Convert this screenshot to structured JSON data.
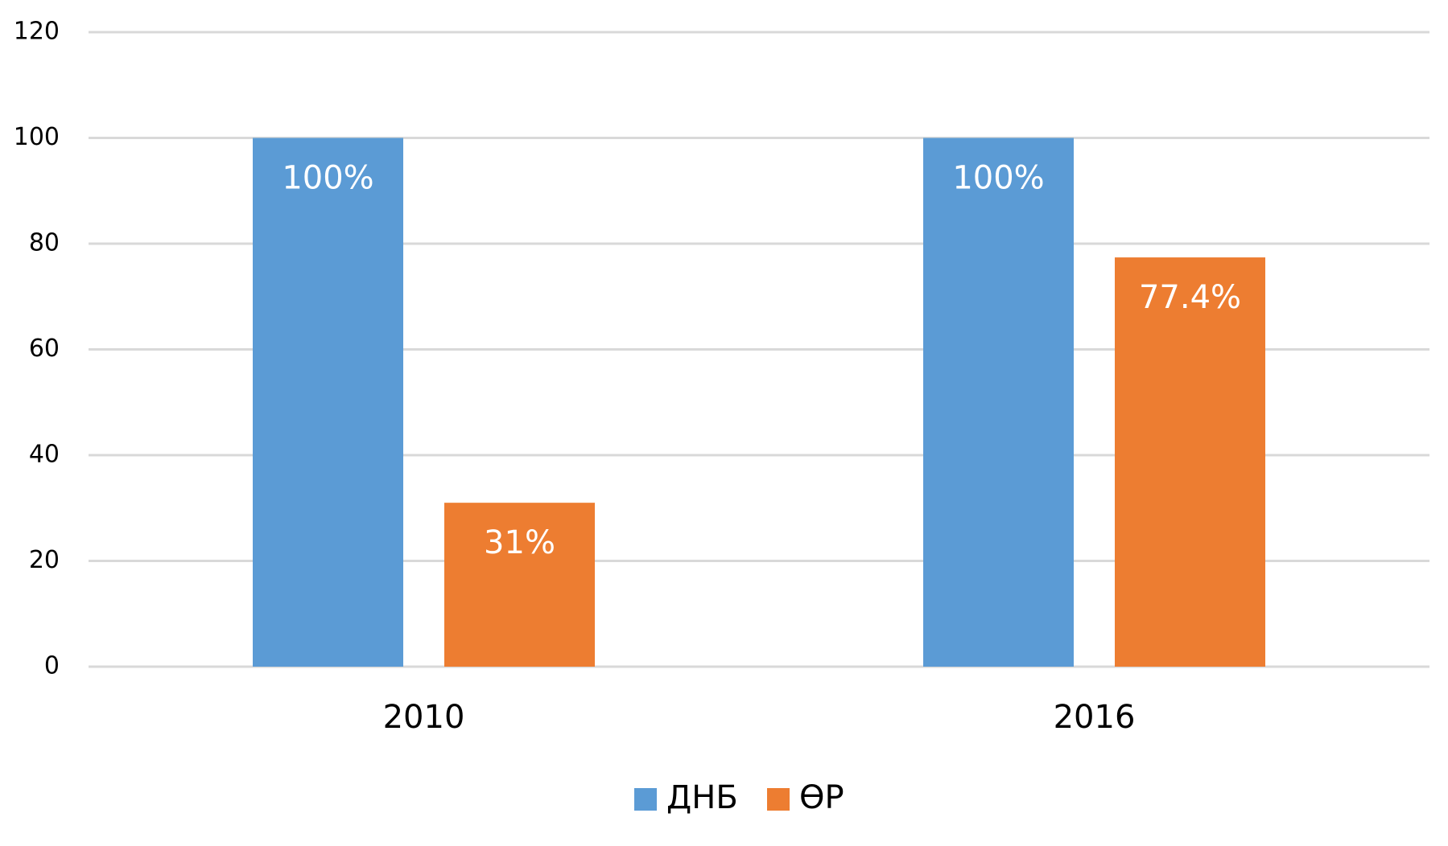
{
  "chart_data": {
    "type": "bar",
    "categories": [
      "2010",
      "2016"
    ],
    "series": [
      {
        "name": "ДНБ",
        "color": "#5b9bd5",
        "values": [
          100,
          100
        ],
        "value_labels": [
          "100%",
          "100%"
        ]
      },
      {
        "name": "ӨР",
        "color": "#ed7d31",
        "values": [
          31,
          77.4
        ],
        "value_labels": [
          "31%",
          "77.4%"
        ]
      }
    ],
    "ylim": [
      0,
      120
    ],
    "yticks": [
      0,
      20,
      40,
      60,
      80,
      100,
      120
    ],
    "grid": true,
    "legend": "bottom"
  }
}
